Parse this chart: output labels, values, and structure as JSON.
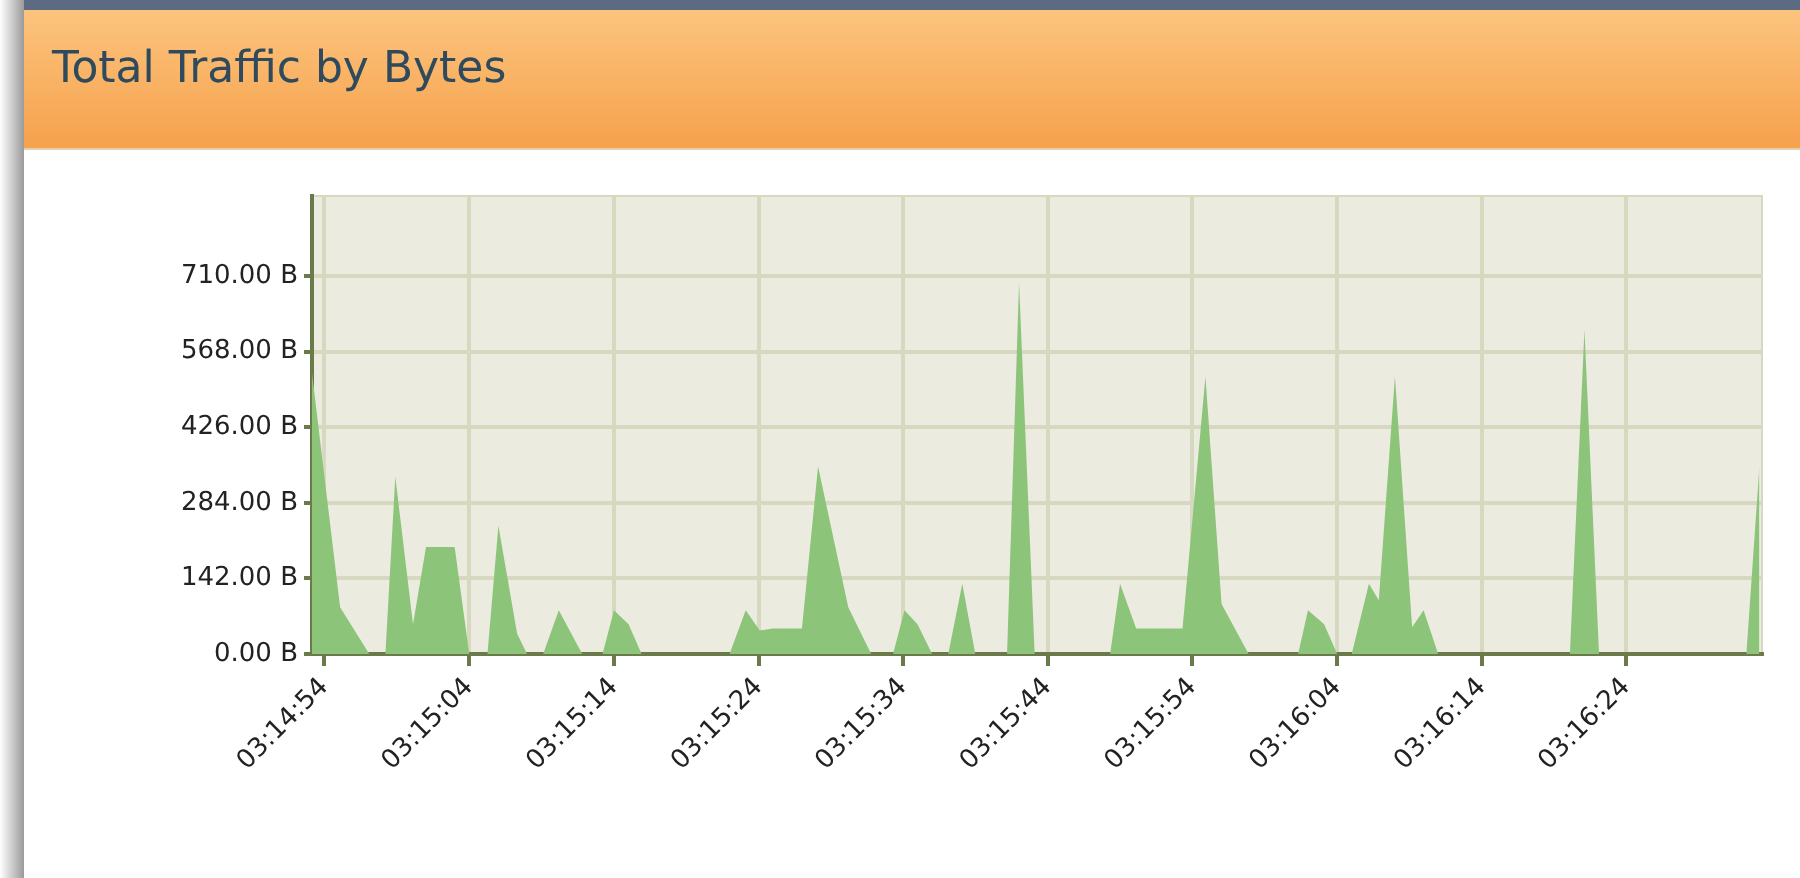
{
  "chart_data": {
    "type": "area",
    "title": "Total Traffic by Bytes",
    "x": [
      3.24809,
      3.24863,
      3.24919,
      3.2495,
      3.24969,
      3.25003,
      3.25028,
      3.25083,
      3.25111,
      3.25146,
      3.25167,
      3.25203,
      3.25222,
      3.25253,
      3.25283,
      3.25328,
      3.25367,
      3.25389,
      3.25417,
      3.25442,
      3.25611,
      3.25642,
      3.25669,
      3.25694,
      3.2575,
      3.25781,
      3.25839,
      3.25883,
      3.25925,
      3.25947,
      3.25972,
      3.26,
      3.26031,
      3.26058,
      3.26083,
      3.26144,
      3.26167,
      3.26197,
      3.26342,
      3.26361,
      3.26392,
      3.26481,
      3.26525,
      3.26556,
      3.26608,
      3.26703,
      3.26722,
      3.26753,
      3.26778,
      3.26806,
      3.26839,
      3.26858,
      3.26889,
      3.26922,
      3.26944,
      3.26972,
      3.27225,
      3.27253,
      3.27281,
      3.27564,
      3.27589
    ],
    "values": [
      527,
      88,
      0,
      0,
      333,
      56,
      201,
      201,
      0,
      0,
      241,
      38,
      0,
      0,
      82,
      0,
      0,
      82,
      56,
      0,
      0,
      82,
      44,
      48,
      48,
      352,
      88,
      0,
      0,
      82,
      56,
      0,
      0,
      132,
      0,
      0,
      697,
      0,
      0,
      132,
      48,
      48,
      521,
      94,
      0,
      0,
      82,
      56,
      0,
      0,
      132,
      101,
      521,
      50,
      82,
      0,
      0,
      609,
      0,
      0,
      352
    ],
    "color": "#8cc47a",
    "xlim": [
      3.24809,
      3.27594
    ],
    "xticks": [
      {
        "value": 3.24833,
        "label": "03:14:54"
      },
      {
        "value": 3.25111,
        "label": "03:15:04"
      },
      {
        "value": 3.25389,
        "label": "03:15:14"
      },
      {
        "value": 3.25667,
        "label": "03:15:24"
      },
      {
        "value": 3.25944,
        "label": "03:15:34"
      },
      {
        "value": 3.26222,
        "label": "03:15:44"
      },
      {
        "value": 3.265,
        "label": "03:15:54"
      },
      {
        "value": 3.26778,
        "label": "03:16:04"
      },
      {
        "value": 3.27056,
        "label": "03:16:14"
      },
      {
        "value": 3.27333,
        "label": "03:16:24"
      }
    ],
    "ylim": [
      0,
      860
    ],
    "yticks": [
      {
        "value": 0,
        "label": "0.00 B"
      },
      {
        "value": 142,
        "label": "142.00 B"
      },
      {
        "value": 284,
        "label": "284.00 B"
      },
      {
        "value": 426,
        "label": "426.00 B"
      },
      {
        "value": 568,
        "label": "568.00 B"
      },
      {
        "value": 710,
        "label": "710.00 B"
      }
    ],
    "grid": true
  }
}
